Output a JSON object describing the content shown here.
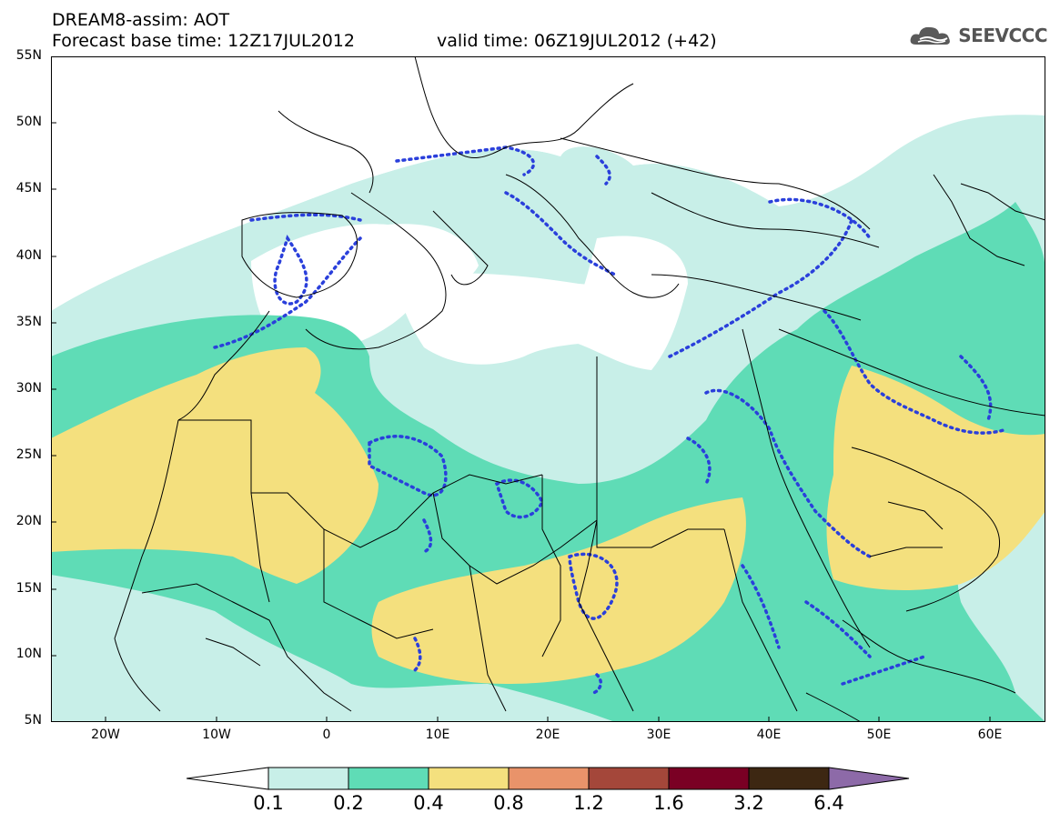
{
  "header": {
    "title": "DREAM8-assim: AOT",
    "base_time": "Forecast base time: 12Z17JUL2012",
    "valid_time": "valid time: 06Z19JUL2012 (+42)"
  },
  "logo": {
    "text": "SEEVCCC",
    "icon": "cloud-logo-icon"
  },
  "axes": {
    "lat_labels": [
      "55N",
      "50N",
      "45N",
      "40N",
      "35N",
      "30N",
      "25N",
      "20N",
      "15N",
      "10N",
      "5N"
    ],
    "lon_labels": [
      "20W",
      "10W",
      "0",
      "10E",
      "20E",
      "30E",
      "40E",
      "50E",
      "60E"
    ],
    "lat_range": [
      5,
      55
    ],
    "lon_range": [
      -25,
      65
    ]
  },
  "legend": {
    "levels": [
      "0.1",
      "0.2",
      "0.4",
      "0.8",
      "1.2",
      "1.6",
      "3.2",
      "6.4"
    ],
    "colors": [
      "#ffffff",
      "#c8efe8",
      "#5fdcb6",
      "#f4e07e",
      "#e9936a",
      "#a4473a",
      "#7a0024",
      "#3d2712",
      "#8d6aa8"
    ]
  },
  "map": {
    "fill_colors": {
      "land_bg": "#ffffff",
      "c01": "#c8efe8",
      "c02": "#5fdcb6",
      "c04": "#f4e07e"
    },
    "dotted_contour_color": "#2a3fdb",
    "border_color": "#000000"
  }
}
